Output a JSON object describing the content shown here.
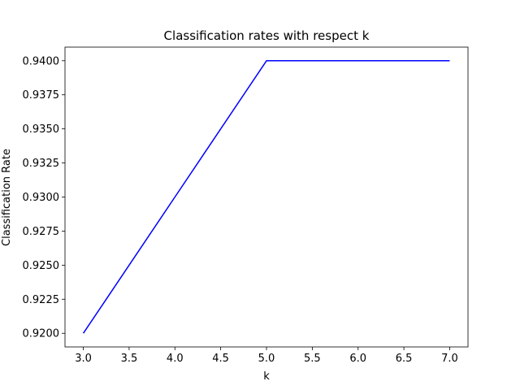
{
  "chart_data": {
    "type": "line",
    "title": "Classification rates with respect k",
    "xlabel": "k",
    "ylabel": "Classification Rate",
    "xlim": [
      2.8,
      7.2
    ],
    "ylim": [
      0.919,
      0.941
    ],
    "x_ticks": [
      3.0,
      3.5,
      4.0,
      4.5,
      5.0,
      5.5,
      6.0,
      6.5,
      7.0
    ],
    "x_tick_labels": [
      "3.0",
      "3.5",
      "4.0",
      "4.5",
      "5.0",
      "5.5",
      "6.0",
      "6.5",
      "7.0"
    ],
    "y_ticks": [
      0.92,
      0.9225,
      0.925,
      0.9275,
      0.93,
      0.9325,
      0.935,
      0.9375,
      0.94
    ],
    "y_tick_labels": [
      "0.9200",
      "0.9225",
      "0.9250",
      "0.9275",
      "0.9300",
      "0.9325",
      "0.9350",
      "0.9375",
      "0.9400"
    ],
    "grid": false,
    "series": [
      {
        "color": "#0000ff",
        "x": [
          3,
          4,
          5,
          6,
          7
        ],
        "y": [
          0.92,
          0.93,
          0.94,
          0.94,
          0.94
        ]
      }
    ]
  }
}
